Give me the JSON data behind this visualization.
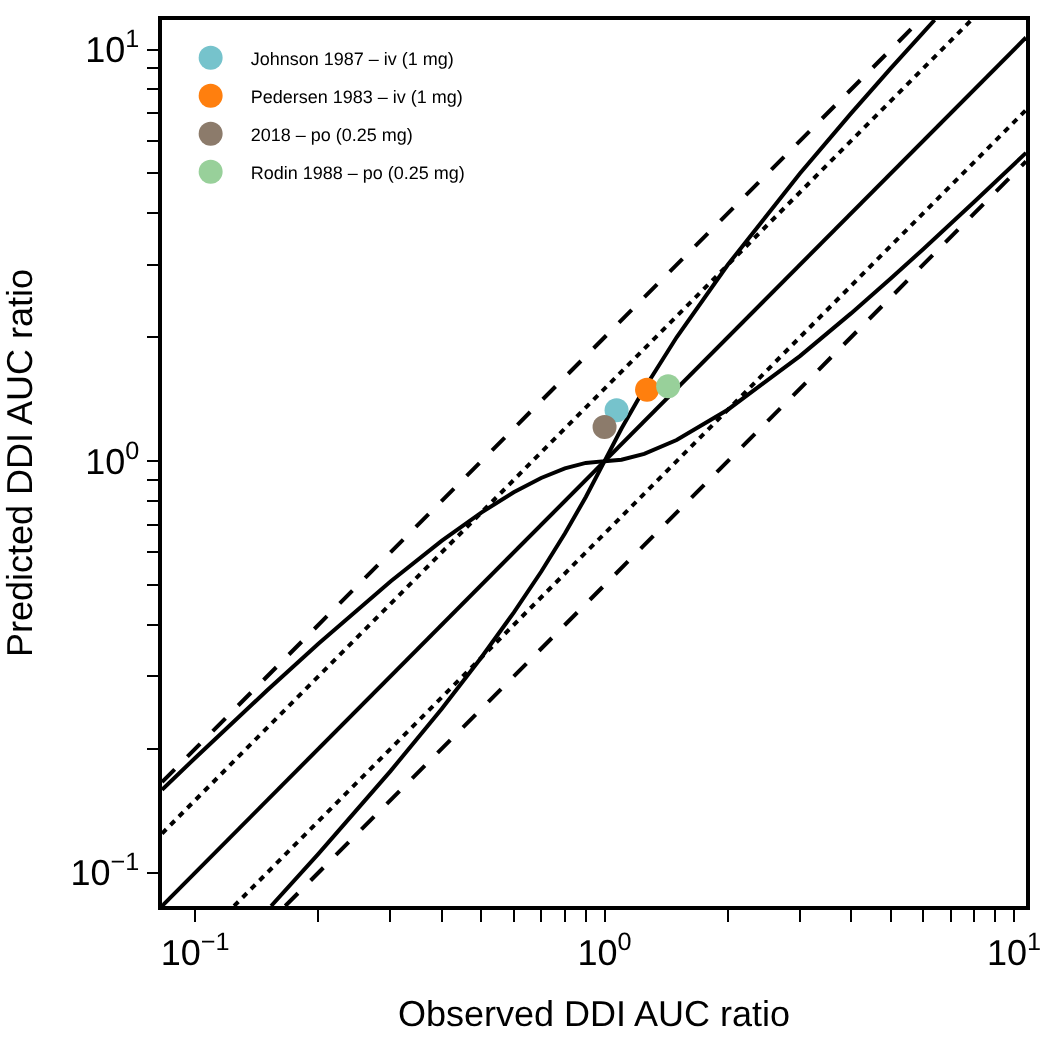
{
  "chart_data": {
    "type": "scatter",
    "xlabel": "Observed DDI AUC ratio",
    "ylabel": "Predicted DDI AUC ratio",
    "log": "xy",
    "grid": false,
    "legend": "top left",
    "marker": "circle",
    "xlim": [
      0.083,
      10.7
    ],
    "ylim": [
      0.083,
      11.8
    ],
    "xticks": [
      {
        "value": 0.1,
        "label": "10$^{−1}$"
      },
      {
        "value": 0.2,
        "label": null
      },
      {
        "value": 0.3,
        "label": null
      },
      {
        "value": 0.4,
        "label": null
      },
      {
        "value": 0.5,
        "label": null
      },
      {
        "value": 0.6,
        "label": null
      },
      {
        "value": 0.7,
        "label": null
      },
      {
        "value": 0.8,
        "label": null
      },
      {
        "value": 0.9,
        "label": null
      },
      {
        "value": 1,
        "label": "10$^{0}$"
      },
      {
        "value": 2,
        "label": null
      },
      {
        "value": 3,
        "label": null
      },
      {
        "value": 4,
        "label": null
      },
      {
        "value": 5,
        "label": null
      },
      {
        "value": 6,
        "label": null
      },
      {
        "value": 7,
        "label": null
      },
      {
        "value": 8,
        "label": null
      },
      {
        "value": 9,
        "label": null
      },
      {
        "value": 10,
        "label": "10$^{1}$"
      }
    ],
    "yticks": [
      {
        "value": 0.1,
        "label": "10$^{−1}$"
      },
      {
        "value": 0.2,
        "label": null
      },
      {
        "value": 0.3,
        "label": null
      },
      {
        "value": 0.4,
        "label": null
      },
      {
        "value": 0.5,
        "label": null
      },
      {
        "value": 0.6,
        "label": null
      },
      {
        "value": 0.7,
        "label": null
      },
      {
        "value": 0.8,
        "label": null
      },
      {
        "value": 0.9,
        "label": null
      },
      {
        "value": 1,
        "label": "10$^{0}$"
      },
      {
        "value": 2,
        "label": null
      },
      {
        "value": 3,
        "label": null
      },
      {
        "value": 4,
        "label": null
      },
      {
        "value": 5,
        "label": null
      },
      {
        "value": 6,
        "label": null
      },
      {
        "value": 7,
        "label": null
      },
      {
        "value": 8,
        "label": null
      },
      {
        "value": 9,
        "label": null
      },
      {
        "value": 10,
        "label": "10$^{1}$"
      }
    ],
    "series": [
      {
        "type": "line",
        "color": "#000000",
        "line_style": "dashed",
        "marker": "none",
        "x": [
          0.083,
          5.9
        ],
        "values": [
          0.166,
          11.8
        ]
      },
      {
        "type": "line",
        "color": "#000000",
        "line_style": "dashed",
        "marker": "none",
        "x": [
          0.166,
          10.7
        ],
        "values": [
          0.083,
          5.35
        ]
      },
      {
        "type": "line",
        "color": "#000000",
        "line_style": "dotted",
        "marker": "none",
        "x": [
          0.083,
          7.867
        ],
        "values": [
          0.1245,
          11.8
        ]
      },
      {
        "type": "line",
        "color": "#000000",
        "line_style": "dotted",
        "marker": "none",
        "x": [
          0.1245,
          10.7
        ],
        "values": [
          0.083,
          7.133
        ]
      },
      {
        "type": "line",
        "color": "#000000",
        "line_style": "solid",
        "marker": "none",
        "x": [
          0.083,
          10.7
        ],
        "values": [
          0.083,
          10.7
        ]
      },
      {
        "type": "line",
        "color": "#000000",
        "line_style": "solid",
        "marker": "none",
        "x": [
          0.083,
          0.1,
          0.15,
          0.2,
          0.3,
          0.4,
          0.5,
          0.6,
          0.7,
          0.8,
          0.9,
          1,
          1.1,
          1.25,
          1.5,
          2,
          3,
          4,
          5,
          6.4
        ],
        "values": [
          0.1591,
          0.19,
          0.2775,
          0.36,
          0.51,
          0.64,
          0.75,
          0.84,
          0.91,
          0.96,
          0.99,
          1,
          1.2,
          1.5,
          2,
          3,
          5,
          7,
          9,
          11.8
        ]
      },
      {
        "type": "line",
        "color": "#000000",
        "line_style": "solid",
        "marker": "none",
        "x": [
          0.1533,
          0.2,
          0.3,
          0.4,
          0.5,
          0.6,
          0.7,
          0.8,
          0.9,
          1,
          1.1,
          1.25,
          1.5,
          2,
          3,
          4,
          5,
          6,
          8,
          10.7
        ],
        "values": [
          0.083,
          0.1111,
          0.1765,
          0.25,
          0.3333,
          0.4286,
          0.5385,
          0.6667,
          0.8182,
          1,
          1.0083,
          1.0417,
          1.125,
          1.3333,
          1.8,
          2.2857,
          2.7778,
          3.2727,
          4.2667,
          5.612
        ]
      },
      {
        "name": "Johnson 1987 – iv (1 mg)",
        "color": "#76c3cc",
        "x": [
          1.07
        ],
        "values": [
          1.33
        ]
      },
      {
        "name": "Pedersen 1983 – iv (1 mg)",
        "color": "#ff7f0e",
        "x": [
          1.27
        ],
        "values": [
          1.49
        ]
      },
      {
        "name": "2018 – po (0.25 mg)",
        "color": "#8c7b6b",
        "x": [
          1.0
        ],
        "values": [
          1.21
        ]
      },
      {
        "name": "Rodin 1988 – po (0.25 mg)",
        "color": "#98d09a",
        "x": [
          1.43
        ],
        "values": [
          1.52
        ]
      }
    ]
  }
}
